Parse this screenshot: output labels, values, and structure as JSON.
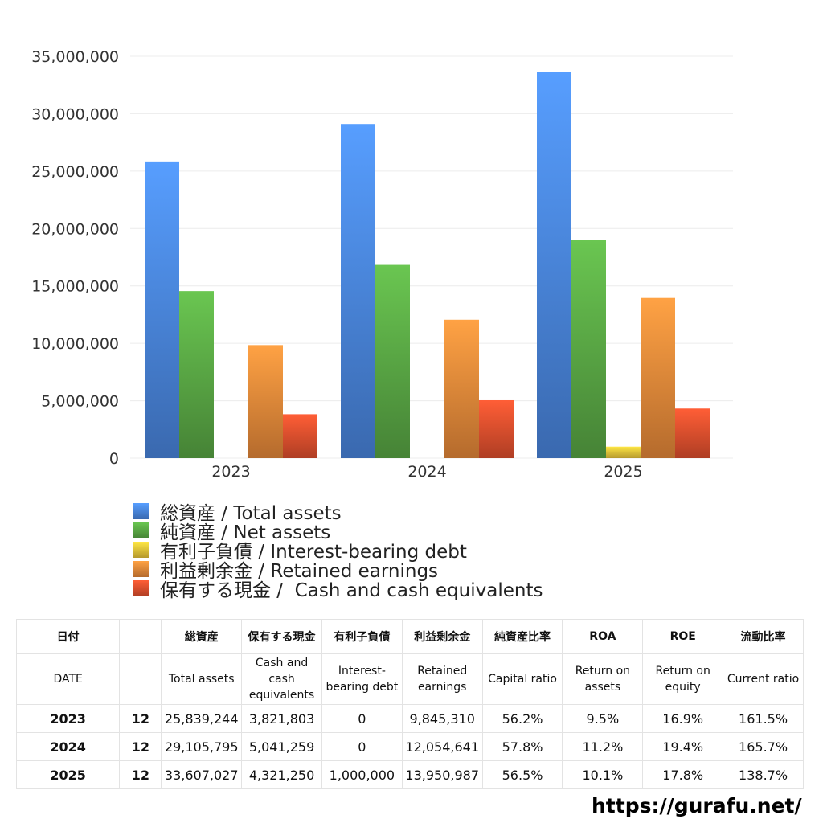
{
  "chart_data": {
    "type": "bar",
    "categories": [
      "2023",
      "2024",
      "2025"
    ],
    "series": [
      {
        "name": "総資産 / Total assets",
        "color": "#4a86e0",
        "values": [
          25839244,
          29105795,
          33607027
        ]
      },
      {
        "name": "純資産 / Net assets",
        "color": "#5aa845",
        "values": [
          14550000,
          16830000,
          18990000
        ]
      },
      {
        "name": "有利子負債 / Interest-bearing debt",
        "color": "#e8c43a",
        "values": [
          0,
          0,
          1000000
        ]
      },
      {
        "name": "利益剰余金 / Retained earnings",
        "color": "#e8893a",
        "values": [
          9845310,
          12054641,
          13950987
        ]
      },
      {
        "name": "保有する現金 /  Cash and cash equivalents",
        "color": "#e0502e",
        "values": [
          3821803,
          5041259,
          4321250
        ]
      }
    ],
    "yticks": [
      "0",
      "5,000,000",
      "10,000,000",
      "15,000,000",
      "20,000,000",
      "25,000,000",
      "30,000,000",
      "35,000,000"
    ],
    "ylim": [
      0,
      35000000
    ],
    "grid": true,
    "legend_position": "bottom"
  },
  "table": {
    "header_jp": [
      "日付",
      "",
      "総資産",
      "保有する現金",
      "有利子負債",
      "利益剰余金",
      "純資産比率",
      "ROA",
      "ROE",
      "流動比率"
    ],
    "header_en": [
      "DATE",
      "",
      "Total assets",
      "Cash and cash equivalents",
      "Interest-bearing debt",
      "Retained earnings",
      "Capital ratio",
      "Return on assets",
      "Return on equity",
      "Current ratio"
    ],
    "rows": [
      [
        "2023",
        "12",
        "25,839,244",
        "3,821,803",
        "0",
        "9,845,310",
        "56.2%",
        "9.5%",
        "16.9%",
        "161.5%"
      ],
      [
        "2024",
        "12",
        "29,105,795",
        "5,041,259",
        "0",
        "12,054,641",
        "57.8%",
        "11.2%",
        "19.4%",
        "165.7%"
      ],
      [
        "2025",
        "12",
        "33,607,027",
        "4,321,250",
        "1,000,000",
        "13,950,987",
        "56.5%",
        "10.1%",
        "17.8%",
        "138.7%"
      ]
    ]
  },
  "footer": {
    "url": "https://gurafu.net/"
  }
}
